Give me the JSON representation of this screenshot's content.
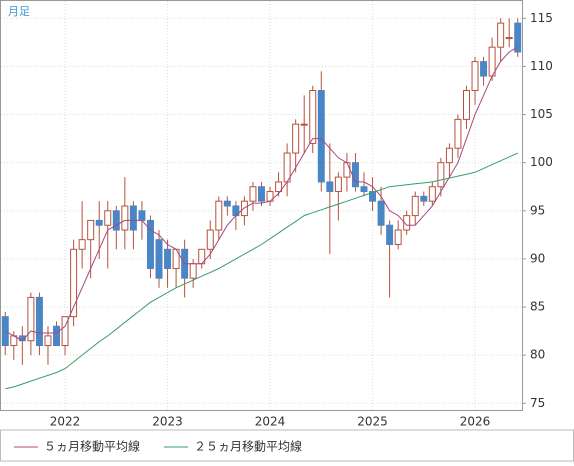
{
  "chart_data": {
    "type": "candlestick",
    "label": "月足",
    "categories": [
      null,
      null,
      null,
      null,
      null,
      null,
      null,
      "2022",
      null,
      null,
      null,
      null,
      null,
      null,
      null,
      null,
      null,
      null,
      null,
      "2023",
      null,
      null,
      null,
      null,
      null,
      null,
      null,
      null,
      null,
      null,
      null,
      "2024",
      null,
      null,
      null,
      null,
      null,
      null,
      null,
      null,
      null,
      null,
      null,
      "2025",
      null,
      null,
      null,
      null,
      null,
      null,
      null,
      null,
      null,
      null,
      null,
      "2026",
      null,
      null,
      null,
      null,
      null
    ],
    "open": [
      84,
      81,
      82,
      81.5,
      86,
      81,
      83,
      81,
      84,
      91,
      92,
      94,
      93.5,
      95,
      93,
      95.5,
      95,
      94,
      92,
      91,
      89,
      91,
      88,
      89.5,
      91,
      93,
      96,
      95.5,
      94.5,
      96,
      97.5,
      96,
      97,
      98,
      101,
      104,
      102,
      107.5,
      98,
      97,
      98.5,
      100,
      97.5,
      97,
      96,
      93.5,
      91.5,
      93,
      94.5,
      96.5,
      96,
      97.5,
      100,
      101.5,
      104.5,
      107.5,
      110.5,
      109,
      112,
      113,
      114.5
    ],
    "high": [
      84.5,
      82.5,
      83,
      86.5,
      86.5,
      83,
      83.5,
      84,
      92,
      96,
      94,
      96,
      96,
      95.5,
      98.5,
      96,
      96,
      94.5,
      93,
      92,
      91,
      92,
      90,
      91,
      94,
      96.5,
      96.5,
      96,
      96.5,
      98,
      98,
      97.5,
      99,
      102,
      104.5,
      107,
      108,
      109.5,
      102,
      99,
      101,
      101,
      99,
      98.5,
      97.5,
      94,
      94,
      95,
      97,
      97,
      98,
      100.5,
      102,
      105,
      108,
      111,
      111,
      113,
      115,
      115,
      115
    ],
    "low": [
      80,
      79.5,
      79,
      80,
      80,
      79,
      81,
      80,
      83,
      89,
      88,
      90,
      89,
      91,
      91,
      91,
      92,
      88,
      87,
      87,
      87,
      86,
      87,
      89,
      90,
      92,
      94.5,
      93,
      93.5,
      95,
      95.5,
      95.5,
      96.5,
      96.5,
      99,
      101,
      101,
      97,
      90.5,
      94,
      97,
      97,
      96.5,
      95,
      92.5,
      86,
      91,
      92.5,
      93.5,
      95.5,
      95.5,
      96.5,
      98.5,
      100.5,
      103.5,
      106,
      108,
      108.5,
      110.5,
      112,
      111
    ],
    "close": [
      81,
      82,
      81.5,
      86,
      81,
      82,
      81,
      84,
      91,
      92,
      94,
      93.5,
      95,
      93,
      95.5,
      93,
      94,
      89,
      88,
      89,
      91,
      88,
      89.5,
      91,
      93,
      96,
      95.5,
      94.5,
      96,
      97.5,
      96,
      97,
      98,
      101,
      104,
      104,
      107.5,
      98,
      97,
      98.5,
      100,
      97.5,
      97,
      96,
      93.5,
      91.5,
      93,
      94.5,
      96.5,
      96,
      97.5,
      100,
      101.5,
      104.5,
      107.5,
      110.5,
      109,
      112,
      114.5,
      113,
      111.5
    ],
    "up_color": "#ffffff",
    "down_color": "#4a86c5",
    "edge_color": "#b5523b",
    "series": [
      {
        "name": "５ヵ月移動平均線",
        "color": "#a8477e",
        "values": [
          82.5,
          82,
          81.5,
          82.5,
          82.3,
          82.3,
          82.3,
          83,
          85,
          87,
          89,
          91,
          93,
          93.5,
          94,
          94,
          94,
          93,
          92.5,
          91.5,
          91,
          89.5,
          89.5,
          89.5,
          90.5,
          92,
          93.5,
          94.5,
          95.3,
          95.8,
          95.8,
          96,
          96.8,
          98,
          99.5,
          101,
          102.5,
          102.5,
          101.5,
          100.5,
          100,
          98,
          98,
          97.5,
          96.5,
          95,
          94.5,
          93.5,
          93.5,
          94.5,
          95.5,
          97,
          98.5,
          100,
          102.5,
          105,
          107,
          109,
          110.5,
          111.5,
          112
        ]
      },
      {
        "name": "２５ヵ月移動平均線",
        "color": "#3a9c6a",
        "values": [
          76.5,
          76.7,
          77,
          77.3,
          77.6,
          77.9,
          78.2,
          78.6,
          79.3,
          80,
          80.7,
          81.4,
          82,
          82.7,
          83.4,
          84.1,
          84.8,
          85.5,
          86,
          86.5,
          87,
          87.4,
          87.8,
          88.2,
          88.6,
          89,
          89.5,
          90,
          90.5,
          91,
          91.5,
          92.1,
          92.7,
          93.3,
          93.9,
          94.5,
          94.8,
          95.1,
          95.4,
          95.7,
          96,
          96.3,
          96.6,
          96.9,
          97.2,
          97.5,
          97.6,
          97.7,
          97.8,
          97.9,
          98,
          98.2,
          98.4,
          98.6,
          98.8,
          99,
          99.4,
          99.8,
          100.2,
          100.6,
          101
        ]
      }
    ],
    "ylim": [
      74.3,
      116.8
    ],
    "yticks": [
      75,
      80,
      85,
      90,
      95,
      100,
      105,
      110,
      115
    ],
    "grid": true
  }
}
